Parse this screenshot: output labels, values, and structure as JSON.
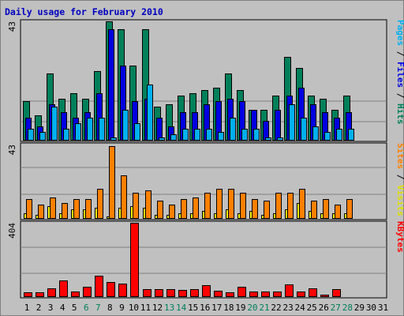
{
  "title": "Daily usage for February 2010",
  "colors": {
    "background": "#c0c0c0",
    "frame": "#808080",
    "title": "#0000c0",
    "hits": "#00805a",
    "files": "#0000e0",
    "pages": "#00b0f0",
    "visits": "#ffff00",
    "sites": "#ff8000",
    "kbytes": "#ff0000",
    "weekend_label": "#00805a",
    "gridline": "#808080"
  },
  "legends": {
    "top": [
      {
        "text": "Pages",
        "color": "#00b0f0"
      },
      {
        "text": " / ",
        "color": "#000000"
      },
      {
        "text": "Files",
        "color": "#0000e0"
      },
      {
        "text": " / ",
        "color": "#000000"
      },
      {
        "text": "Hits",
        "color": "#00805a"
      }
    ],
    "middle": [
      {
        "text": "Sites",
        "color": "#ff8000"
      },
      {
        "text": " / ",
        "color": "#000000"
      },
      {
        "text": "Visits",
        "color": "#e0e000"
      }
    ],
    "bottom": [
      {
        "text": "KBytes",
        "color": "#ff0000"
      }
    ]
  },
  "chart_data": [
    {
      "type": "bar",
      "panel": "hits-files-pages",
      "ymax_label": "43",
      "ylim": [
        0,
        43
      ],
      "categories": [
        "1",
        "2",
        "3",
        "4",
        "5",
        "6",
        "7",
        "8",
        "9",
        "10",
        "11",
        "12",
        "13",
        "14",
        "15",
        "16",
        "17",
        "18",
        "19",
        "20",
        "21",
        "22",
        "23",
        "24",
        "25",
        "26",
        "27",
        "28",
        "29",
        "30",
        "31"
      ],
      "series": [
        {
          "name": "Hits",
          "values": [
            14,
            9,
            24,
            15,
            17,
            15,
            25,
            43,
            40,
            27,
            40,
            12,
            13,
            16,
            17,
            18,
            19,
            24,
            18,
            11,
            11,
            16,
            30,
            26,
            16,
            15,
            11,
            16,
            0,
            0,
            0
          ]
        },
        {
          "name": "Files",
          "values": [
            8,
            5,
            13,
            10,
            8,
            10,
            17,
            40,
            27,
            14,
            15,
            8,
            5,
            10,
            10,
            13,
            14,
            15,
            14,
            11,
            7,
            11,
            16,
            19,
            13,
            10,
            8,
            10,
            0,
            0,
            0
          ]
        },
        {
          "name": "Pages",
          "values": [
            4,
            3,
            12,
            4,
            6,
            8,
            8,
            1,
            11,
            6,
            20,
            1,
            2,
            4,
            4,
            4,
            3,
            8,
            4,
            4,
            1,
            1,
            13,
            8,
            5,
            3,
            4,
            4,
            0,
            0,
            0
          ]
        }
      ]
    },
    {
      "type": "bar",
      "panel": "sites-visits",
      "ymax_label": "43",
      "ylim": [
        0,
        43
      ],
      "categories": [
        "1",
        "2",
        "3",
        "4",
        "5",
        "6",
        "7",
        "8",
        "9",
        "10",
        "11",
        "12",
        "13",
        "14",
        "15",
        "16",
        "17",
        "18",
        "19",
        "20",
        "21",
        "22",
        "23",
        "24",
        "25",
        "26",
        "27",
        "28",
        "29",
        "30",
        "31"
      ],
      "series": [
        {
          "name": "Visits",
          "values": [
            3,
            2,
            7,
            3,
            5,
            5,
            6,
            1,
            6,
            7,
            6,
            2,
            2,
            3,
            3,
            4,
            3,
            5,
            3,
            4,
            2,
            3,
            5,
            9,
            4,
            3,
            3,
            3,
            0,
            0,
            0
          ]
        },
        {
          "name": "Sites",
          "values": [
            11,
            8,
            12,
            9,
            11,
            11,
            17,
            42,
            25,
            15,
            16,
            10,
            8,
            11,
            12,
            15,
            17,
            17,
            15,
            11,
            10,
            15,
            15,
            17,
            10,
            11,
            8,
            11,
            0,
            0,
            0
          ]
        }
      ]
    },
    {
      "type": "bar",
      "panel": "kbytes",
      "ymax_label": "404",
      "ylim": [
        0,
        404
      ],
      "categories": [
        "1",
        "2",
        "3",
        "4",
        "5",
        "6",
        "7",
        "8",
        "9",
        "10",
        "11",
        "12",
        "13",
        "14",
        "15",
        "16",
        "17",
        "18",
        "19",
        "20",
        "21",
        "22",
        "23",
        "24",
        "25",
        "26",
        "27",
        "28",
        "29",
        "30",
        "31"
      ],
      "series": [
        {
          "name": "KBytes",
          "values": [
            20,
            20,
            45,
            85,
            25,
            50,
            115,
            80,
            70,
            404,
            40,
            40,
            40,
            35,
            40,
            60,
            30,
            20,
            50,
            25,
            25,
            25,
            65,
            25,
            45,
            10,
            40,
            0,
            0,
            0,
            0
          ]
        }
      ]
    }
  ],
  "x_labels": [
    "1",
    "2",
    "3",
    "4",
    "5",
    "6",
    "7",
    "8",
    "9",
    "10",
    "11",
    "12",
    "13",
    "14",
    "15",
    "16",
    "17",
    "18",
    "19",
    "20",
    "21",
    "22",
    "23",
    "24",
    "25",
    "26",
    "27",
    "28",
    "29",
    "30",
    "31"
  ],
  "weekend_days": [
    6,
    7,
    13,
    14,
    20,
    21,
    27,
    28
  ]
}
